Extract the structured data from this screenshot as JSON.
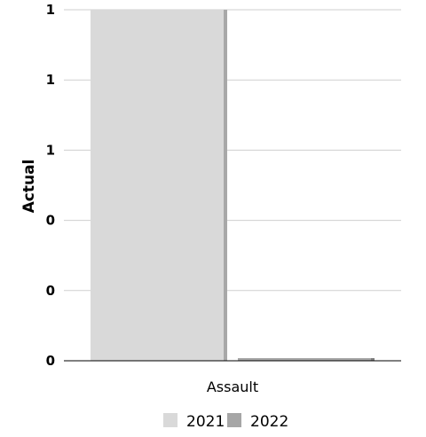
{
  "chart_data": {
    "type": "bar",
    "title": "",
    "xlabel": "",
    "ylabel": "Actual",
    "categories": [
      "Assault"
    ],
    "series": [
      {
        "name": "2021",
        "values": [
          1
        ],
        "color": "#d9d9d9"
      },
      {
        "name": "2022",
        "values": [
          0
        ],
        "color": "#a6a6a6"
      }
    ],
    "y_ticks": [
      {
        "value": 0,
        "label": "0"
      },
      {
        "value": 0.2,
        "label": "0"
      },
      {
        "value": 0.4,
        "label": "0"
      },
      {
        "value": 0.6,
        "label": "1"
      },
      {
        "value": 0.8,
        "label": "1"
      },
      {
        "value": 1,
        "label": "1"
      }
    ],
    "ylim": [
      0,
      1
    ],
    "grid": true,
    "legend_position": "bottom"
  }
}
